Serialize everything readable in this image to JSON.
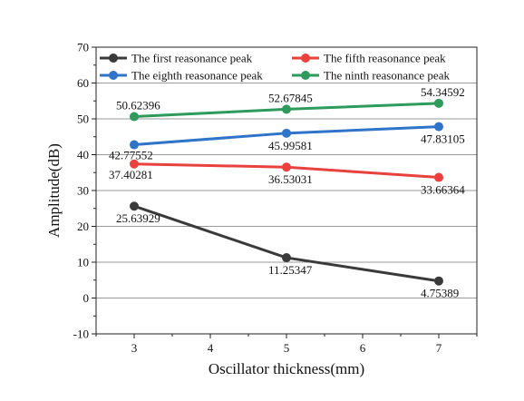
{
  "chart_data": {
    "type": "line",
    "xlabel": "Oscillator thickness(mm)",
    "ylabel": "Amplitude(dB)",
    "xlim": [
      2.5,
      7.5
    ],
    "ylim": [
      -10,
      70
    ],
    "x_ticks": [
      3,
      4,
      5,
      6,
      7
    ],
    "y_ticks": [
      -10,
      0,
      10,
      20,
      30,
      40,
      50,
      60,
      70
    ],
    "grid": "horizontal",
    "legend_position": "top",
    "x": [
      3,
      5,
      7
    ],
    "series": [
      {
        "name": "The first reasonance peak",
        "color": "#3a3a3a",
        "values": [
          25.63929,
          11.25347,
          4.75389
        ],
        "labels": [
          "25.63929",
          "11.25347",
          "4.75389"
        ]
      },
      {
        "name": "The fifth reasonance peak",
        "color": "#e8413e",
        "values": [
          37.40281,
          36.53031,
          33.66364
        ],
        "labels": [
          "37.40281",
          "36.53031",
          "33.66364"
        ]
      },
      {
        "name": "The eighth reasonance peak",
        "color": "#2f74c8",
        "values": [
          42.77552,
          45.99581,
          47.83105
        ],
        "labels": [
          "42.77552",
          "45.99581",
          "47.83105"
        ]
      },
      {
        "name": "The ninth reasonance peak",
        "color": "#2e9a5c",
        "values": [
          50.62396,
          52.67845,
          54.34592
        ],
        "labels": [
          "50.62396",
          "52.67845",
          "54.34592"
        ]
      }
    ]
  }
}
